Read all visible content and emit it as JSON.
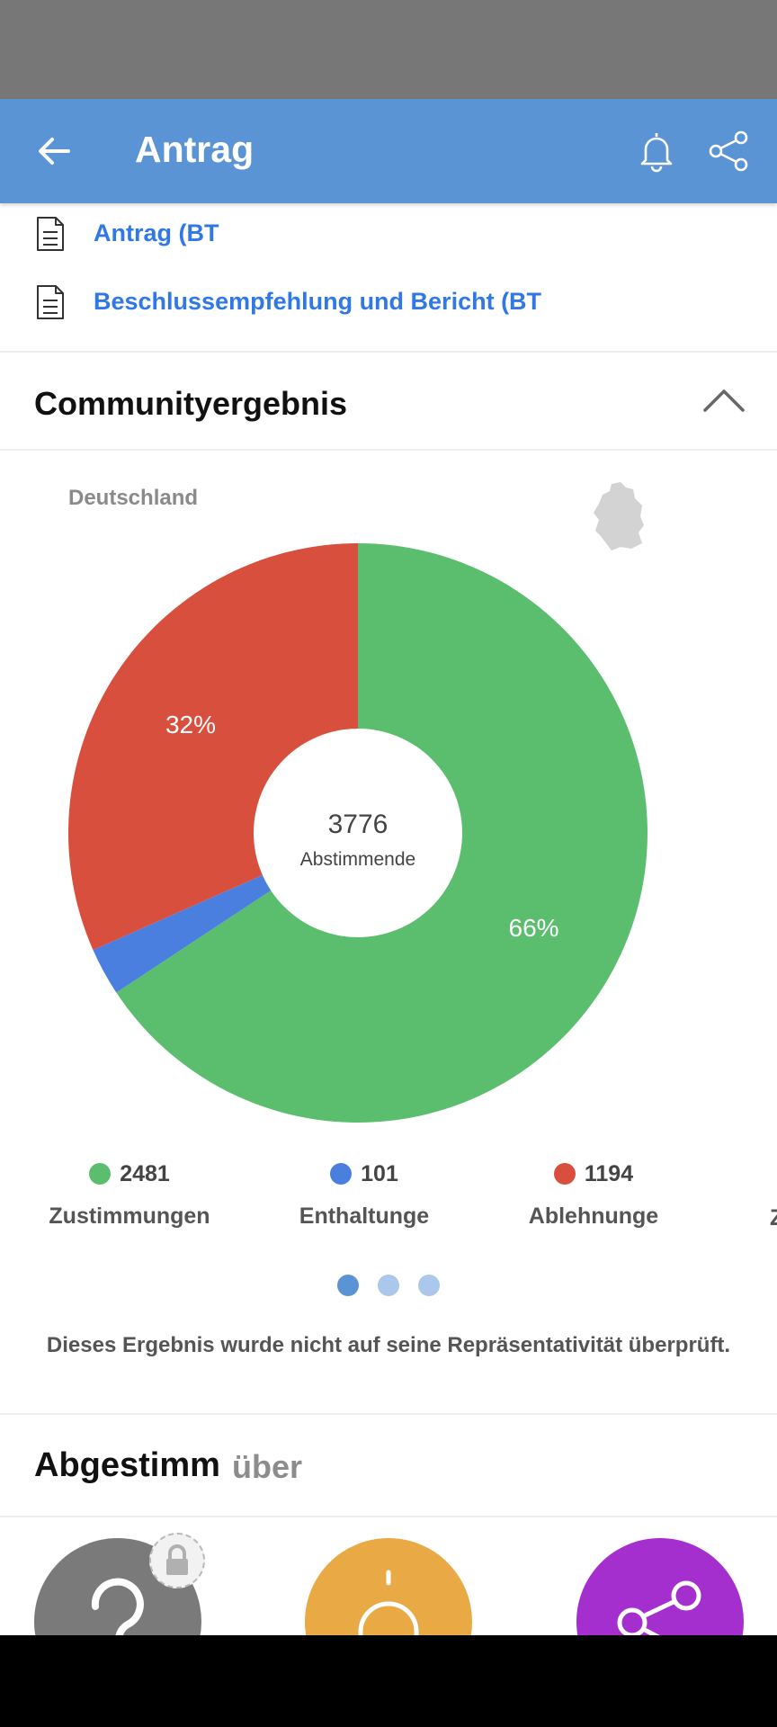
{
  "app_bar": {
    "title": "Antrag",
    "back_icon": "arrow-left-icon",
    "bell_icon": "bell-icon",
    "share_icon": "share-icon"
  },
  "documents": [
    {
      "label": "Antrag (BT",
      "icon": "document-icon"
    },
    {
      "label": "Beschlussempfehlung und Bericht (BT",
      "icon": "document-icon"
    }
  ],
  "community": {
    "title": "Communityergebnis",
    "toggle_icon": "chevron-up-icon",
    "region": "Deutschland",
    "region_icon": "germany-map-icon",
    "center_value": "3776",
    "center_label": "Abstimmende",
    "legend": [
      {
        "value": "2481",
        "label": "Zustimmungen",
        "color": "#5bbd6e"
      },
      {
        "value": "101",
        "label": "Enthaltunge",
        "color": "#4a7fe0"
      },
      {
        "value": "1194",
        "label": "Ablehnunge",
        "color": "#d94f3d"
      }
    ],
    "legend_clipped": "Z",
    "pager": {
      "count": 3,
      "active": 0
    },
    "note": "Dieses Ergebnis wurde nicht auf seine Repräsentativität überprüft."
  },
  "chart_data": {
    "type": "pie",
    "donut": true,
    "categories": [
      "Zustimmungen",
      "Enthaltunge",
      "Ablehnunge"
    ],
    "values": [
      2481,
      101,
      1194
    ],
    "colors": [
      "#5bbd6e",
      "#4a7fe0",
      "#d94f3d"
    ],
    "data_labels": [
      "66%",
      "",
      "32%"
    ],
    "center_text": [
      "3776",
      "Abstimmende"
    ]
  },
  "voted": {
    "title": "Abgestimm",
    "subtitle": "über"
  },
  "actions": [
    {
      "name": "question-action",
      "icon": "question-icon",
      "color": "#7a7a7a",
      "badge_icon": "lock-icon"
    },
    {
      "name": "notify-action",
      "icon": "bell-icon",
      "color": "#e9a944"
    },
    {
      "name": "share-action",
      "icon": "share-icon",
      "color": "#a52ecf"
    }
  ],
  "colors": {
    "app_bar": "#5b94d5",
    "link": "#2f78e5",
    "pager_active": "#5b94d5",
    "pager_inactive": "#abc8ec"
  }
}
